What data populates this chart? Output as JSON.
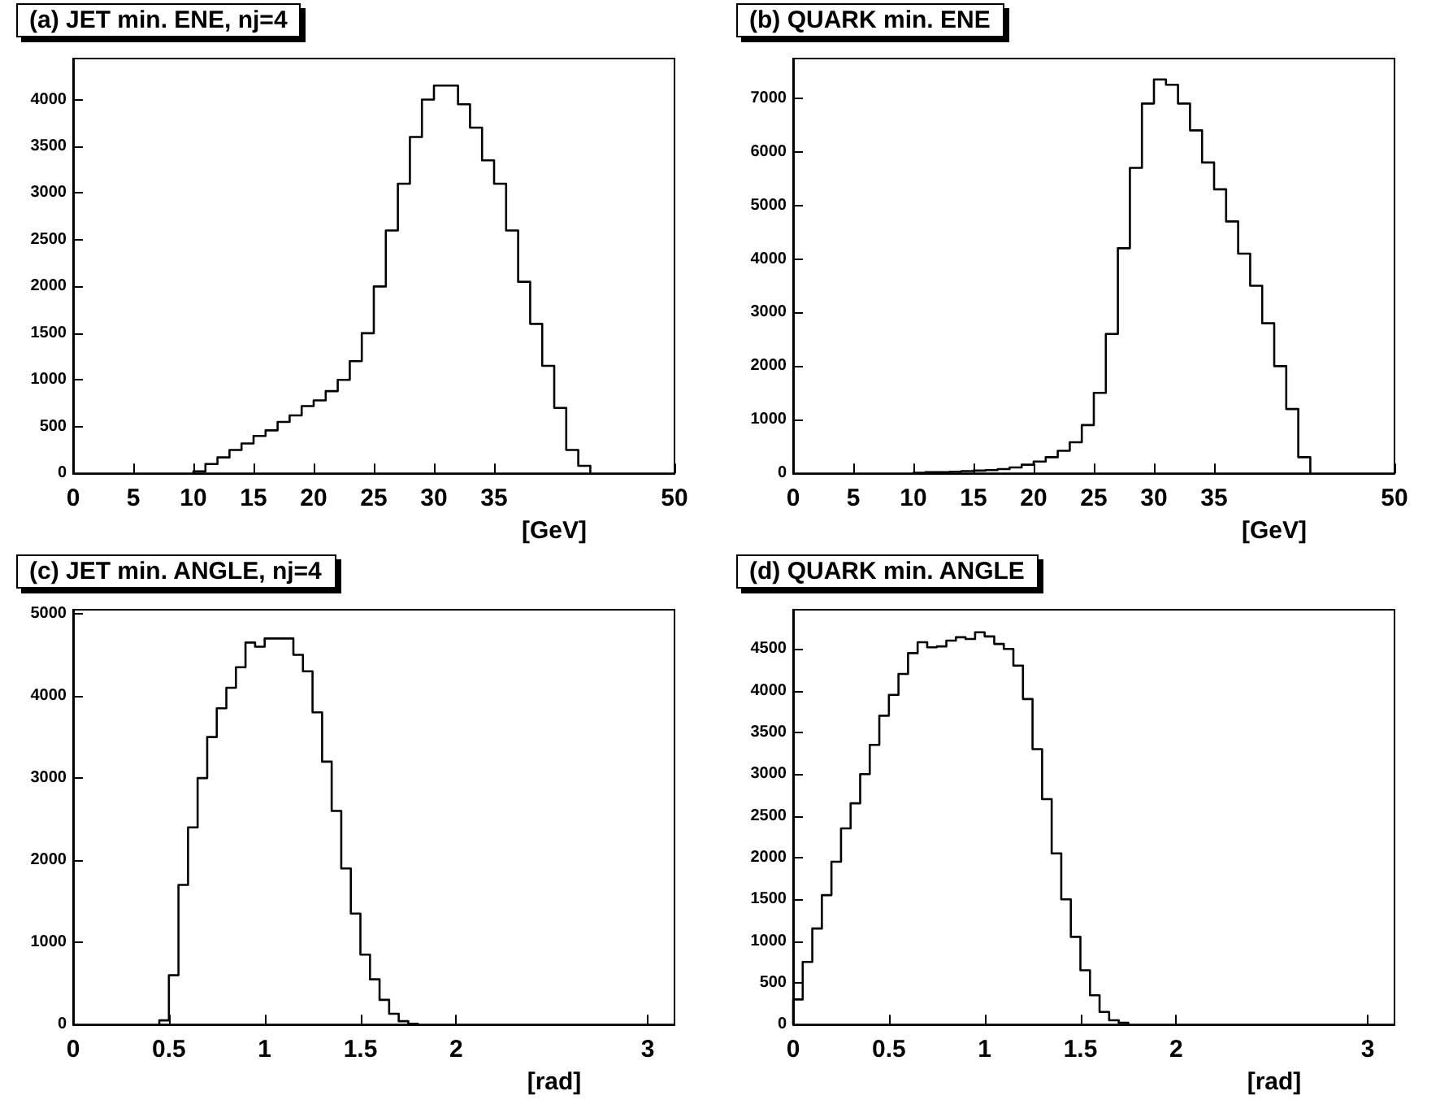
{
  "chart_data": [
    {
      "type": "histogram",
      "title": "(a) JET min. ENE, nj=4",
      "color": "#000000",
      "grid": false,
      "bins": [
        10,
        11,
        12,
        13,
        14,
        15,
        16,
        17,
        18,
        19,
        20,
        21,
        22,
        23,
        24,
        25,
        26,
        27,
        28,
        29,
        30,
        31,
        32,
        33,
        34,
        35,
        36,
        37,
        38,
        39,
        40,
        41,
        42,
        43
      ],
      "values": [
        20,
        100,
        170,
        250,
        320,
        400,
        460,
        550,
        620,
        720,
        780,
        880,
        1000,
        1200,
        1500,
        2000,
        2600,
        3100,
        3600,
        4000,
        4150,
        4150,
        3950,
        3700,
        3350,
        3100,
        2600,
        2050,
        1600,
        1150,
        700,
        250,
        80
      ],
      "xlim": [
        0,
        50
      ],
      "xticks": [
        0,
        5,
        10,
        15,
        20,
        25,
        30,
        35,
        50
      ],
      "xlabel": "[GeV]",
      "ylim": [
        0,
        4440
      ],
      "yticks": [
        0,
        500,
        1000,
        1500,
        2000,
        2500,
        3000,
        3500,
        4000
      ]
    },
    {
      "type": "histogram",
      "title": "(b) QUARK min. ENE",
      "color": "#000000",
      "grid": false,
      "bins": [
        10,
        11,
        12,
        13,
        14,
        15,
        16,
        17,
        18,
        19,
        20,
        21,
        22,
        23,
        24,
        25,
        26,
        27,
        28,
        29,
        30,
        31,
        32,
        33,
        34,
        35,
        36,
        37,
        38,
        39,
        40,
        41,
        42,
        43
      ],
      "values": [
        10,
        20,
        20,
        30,
        40,
        50,
        60,
        80,
        110,
        160,
        220,
        300,
        420,
        580,
        900,
        1500,
        2600,
        4200,
        5700,
        6900,
        7350,
        7250,
        6900,
        6400,
        5800,
        5300,
        4700,
        4100,
        3500,
        2800,
        2000,
        1200,
        300
      ],
      "xlim": [
        0,
        50
      ],
      "xticks": [
        0,
        5,
        10,
        15,
        20,
        25,
        30,
        35,
        50
      ],
      "xlabel": "[GeV]",
      "ylim": [
        0,
        7740
      ],
      "yticks": [
        0,
        1000,
        2000,
        3000,
        4000,
        5000,
        6000,
        7000
      ]
    },
    {
      "type": "histogram",
      "title": "(c) JET min. ANGLE, nj=4",
      "color": "#000000",
      "grid": false,
      "bins": [
        0.45,
        0.5,
        0.55,
        0.6,
        0.65,
        0.7,
        0.75,
        0.8,
        0.85,
        0.9,
        0.95,
        1.0,
        1.05,
        1.1,
        1.15,
        1.2,
        1.25,
        1.3,
        1.35,
        1.4,
        1.45,
        1.5,
        1.55,
        1.6,
        1.65,
        1.7,
        1.75,
        1.8
      ],
      "values": [
        50,
        600,
        1700,
        2400,
        3000,
        3500,
        3850,
        4100,
        4350,
        4650,
        4600,
        4700,
        4700,
        4700,
        4500,
        4300,
        3800,
        3200,
        2600,
        1900,
        1350,
        850,
        550,
        300,
        130,
        40,
        10
      ],
      "xlim": [
        0,
        3.14
      ],
      "xticks": [
        0,
        0.5,
        1,
        1.5,
        2,
        3
      ],
      "xlabel": "[rad]",
      "ylim": [
        0,
        5050
      ],
      "yticks": [
        0,
        1000,
        2000,
        3000,
        4000,
        5000
      ]
    },
    {
      "type": "histogram",
      "title": "(d) QUARK min. ANGLE",
      "color": "#000000",
      "grid": false,
      "bins": [
        0,
        0.05,
        0.1,
        0.15,
        0.2,
        0.25,
        0.3,
        0.35,
        0.4,
        0.45,
        0.5,
        0.55,
        0.6,
        0.65,
        0.7,
        0.75,
        0.8,
        0.85,
        0.9,
        0.95,
        1.0,
        1.05,
        1.1,
        1.15,
        1.2,
        1.25,
        1.3,
        1.35,
        1.4,
        1.45,
        1.5,
        1.55,
        1.6,
        1.65,
        1.7,
        1.75
      ],
      "values": [
        300,
        750,
        1150,
        1550,
        1950,
        2350,
        2650,
        3000,
        3350,
        3700,
        3950,
        4200,
        4450,
        4580,
        4520,
        4530,
        4600,
        4640,
        4620,
        4700,
        4650,
        4560,
        4500,
        4300,
        3900,
        3300,
        2700,
        2050,
        1500,
        1050,
        650,
        350,
        150,
        50,
        20
      ],
      "xlim": [
        0,
        3.14
      ],
      "xticks": [
        0,
        0.5,
        1,
        1.5,
        2,
        3
      ],
      "xlabel": "[rad]",
      "ylim": [
        0,
        4970
      ],
      "yticks": [
        0,
        500,
        1000,
        1500,
        2000,
        2500,
        3000,
        3500,
        4000,
        4500
      ]
    }
  ]
}
